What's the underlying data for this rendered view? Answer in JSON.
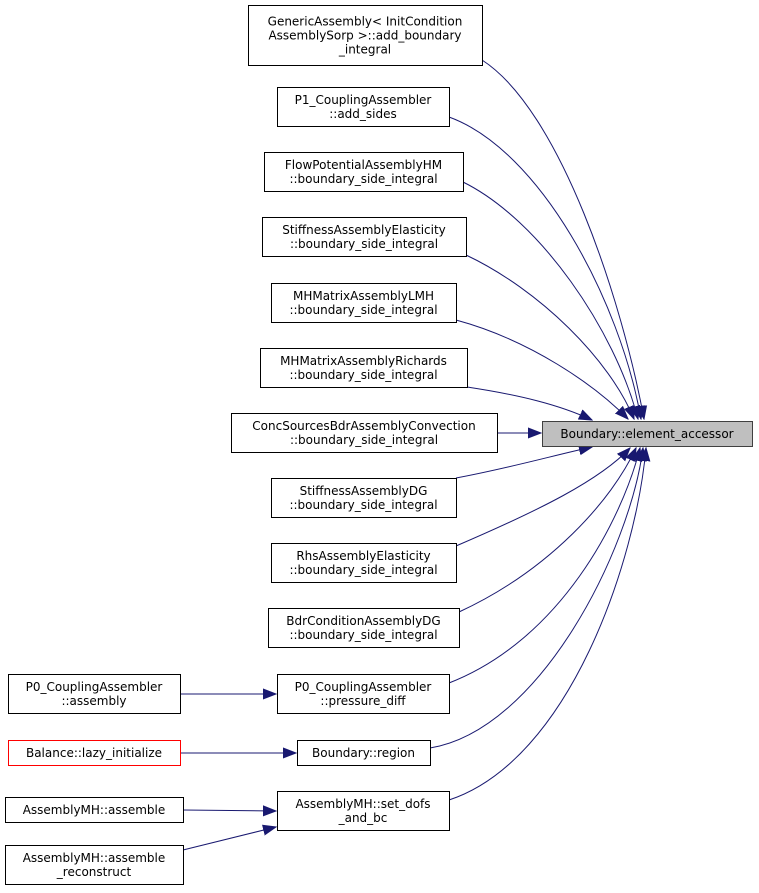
{
  "nodes": [
    {
      "lines": [
        "Boundary::element_accessor"
      ]
    },
    {
      "lines": [
        "GenericAssembly< InitCondition",
        "AssemblySorp >::add_boundary",
        "_integral"
      ]
    },
    {
      "lines": [
        "P1_CouplingAssembler",
        "::add_sides"
      ]
    },
    {
      "lines": [
        "FlowPotentialAssemblyHM",
        "::boundary_side_integral"
      ]
    },
    {
      "lines": [
        "StiffnessAssemblyElasticity",
        "::boundary_side_integral"
      ]
    },
    {
      "lines": [
        "MHMatrixAssemblyLMH",
        "::boundary_side_integral"
      ]
    },
    {
      "lines": [
        "MHMatrixAssemblyRichards",
        "::boundary_side_integral"
      ]
    },
    {
      "lines": [
        "ConcSourcesBdrAssemblyConvection",
        "::boundary_side_integral"
      ]
    },
    {
      "lines": [
        "StiffnessAssemblyDG",
        "::boundary_side_integral"
      ]
    },
    {
      "lines": [
        "RhsAssemblyElasticity",
        "::boundary_side_integral"
      ]
    },
    {
      "lines": [
        "BdrConditionAssemblyDG",
        "::boundary_side_integral"
      ]
    },
    {
      "lines": [
        "P0_CouplingAssembler",
        "::pressure_diff"
      ]
    },
    {
      "lines": [
        "Boundary::region"
      ]
    },
    {
      "lines": [
        "AssemblyMH::set_dofs",
        "_and_bc"
      ]
    },
    {
      "lines": [
        "P0_CouplingAssembler",
        "::assembly"
      ]
    },
    {
      "lines": [
        "Balance::lazy_initialize"
      ]
    },
    {
      "lines": [
        "AssemblyMH::assemble"
      ]
    },
    {
      "lines": [
        "AssemblyMH::assemble",
        "_reconstruct"
      ]
    }
  ]
}
